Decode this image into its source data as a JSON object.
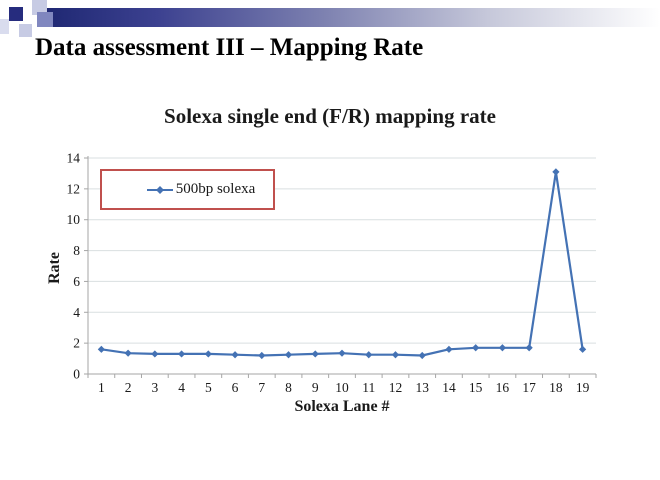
{
  "slide": {
    "title": "Data assessment III – Mapping Rate",
    "background_color": "#FFFFFF",
    "decoration": {
      "bar_gradient_start": "#1F2873",
      "bar_gradient_end": "#FFFFFF",
      "square_navy": "#262C7E",
      "square_pale": "#C7CBE4",
      "square_medium": "#8087BF"
    }
  },
  "chart_data": {
    "type": "line",
    "title": "Solexa single end (F/R) mapping rate",
    "xlabel": "Solexa Lane #",
    "ylabel": "Rate",
    "categories": [
      "1",
      "2",
      "3",
      "4",
      "5",
      "6",
      "7",
      "8",
      "9",
      "10",
      "11",
      "12",
      "13",
      "14",
      "15",
      "16",
      "17",
      "18",
      "19"
    ],
    "series": [
      {
        "name": "500bp solexa",
        "color": "#4472B4",
        "marker": "diamond",
        "values": [
          1.6,
          1.35,
          1.3,
          1.3,
          1.3,
          1.25,
          1.2,
          1.25,
          1.3,
          1.35,
          1.25,
          1.25,
          1.2,
          1.6,
          1.7,
          1.7,
          1.7,
          13.1,
          1.6
        ]
      }
    ],
    "ylim": [
      0,
      14
    ],
    "ytick_step": 2,
    "yticks": [
      "0",
      "2",
      "4",
      "6",
      "8",
      "10",
      "12",
      "14"
    ],
    "grid": "horizontal",
    "grid_color": "#D9DFE0",
    "axis_color": "#A6A6A6",
    "legend_position": "top-left",
    "legend_border_color": "#C0504D"
  }
}
